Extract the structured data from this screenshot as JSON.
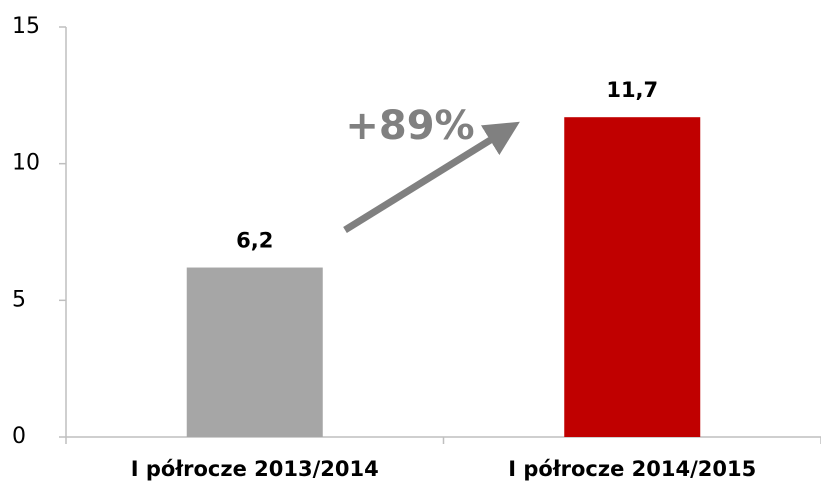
{
  "chart_data": {
    "type": "bar",
    "categories": [
      "I półrocze 2013/2014",
      "I półrocze 2014/2015"
    ],
    "values": [
      6.2,
      11.7
    ],
    "value_labels": [
      "6,2",
      "11,7"
    ],
    "colors": [
      "#a6a6a6",
      "#c00000"
    ],
    "annotation": "+89%",
    "ylim": [
      0,
      15
    ],
    "yticks": [
      0,
      5,
      10,
      15
    ],
    "grid": false
  }
}
